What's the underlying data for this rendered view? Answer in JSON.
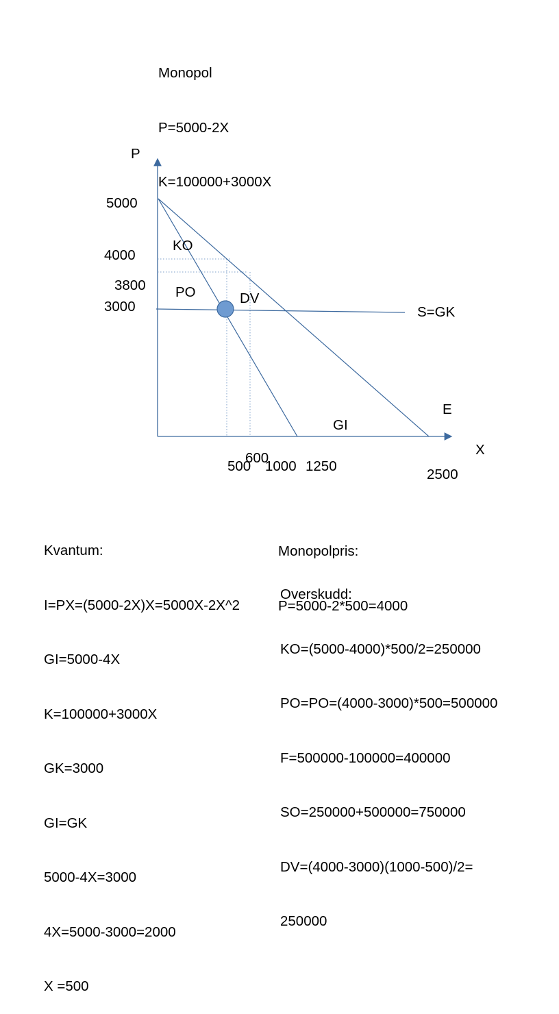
{
  "header": {
    "lines": [
      "Monopol",
      "P=5000-2X",
      "K=100000+3000X"
    ]
  },
  "diagram": {
    "axis_y_label": "P",
    "axis_x_label": "X",
    "y_ticks": {
      "p5000": "5000",
      "p4000": "4000",
      "p3800": "3800",
      "p3000": "3000"
    },
    "x_ticks": {
      "x500": "500",
      "x600": "600",
      "x1000": "1000",
      "x1250": "1250",
      "x2500": "2500"
    },
    "regions": {
      "ko": "KO",
      "po": "PO",
      "dv": "DV",
      "gi": "GI",
      "sgk": "S=GK",
      "e": "E"
    },
    "colors": {
      "axis": "#3d6a9f",
      "line": "#3d6a9f",
      "marker_fill": "#6f9bd1",
      "marker_stroke": "#3d6a9f",
      "guide": "#7d9fc9"
    }
  },
  "left_calc": {
    "lines": [
      "Kvantum:",
      "I=PX=(5000-2X)X=5000X-2X^2",
      "GI=5000-4X",
      "K=100000+3000X",
      "GK=3000",
      "GI=GK",
      "5000-4X=3000",
      "4X=5000-3000=2000",
      "X =500"
    ]
  },
  "right_price": {
    "lines": [
      "Monopolpris:",
      "P=5000-2*500=4000"
    ]
  },
  "right_surplus": {
    "lines": [
      "Overskudd:",
      "KO=(5000-4000)*500/2=250000",
      "PO=PO=(4000-3000)*500=500000",
      "F=500000-100000=400000",
      "SO=250000+500000=750000",
      "DV=(4000-3000)(1000-500)/2=",
      "250000"
    ]
  }
}
